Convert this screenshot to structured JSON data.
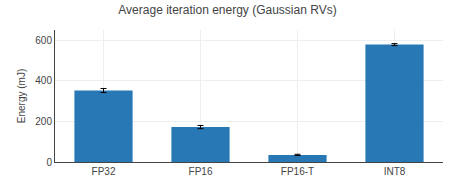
{
  "chart_data": {
    "type": "bar",
    "title": "Average iteration energy (Gaussian RVs)",
    "categories": [
      "FP32",
      "FP16",
      "FP16-T",
      "INT8"
    ],
    "values": [
      352,
      172,
      35,
      578
    ],
    "errors": [
      10,
      8,
      3,
      5
    ],
    "color": "#2878b5",
    "ylabel": "Energy (mJ)",
    "ylim": [
      0,
      650
    ],
    "yticks": [
      0,
      200,
      400,
      600
    ],
    "grid": true
  }
}
